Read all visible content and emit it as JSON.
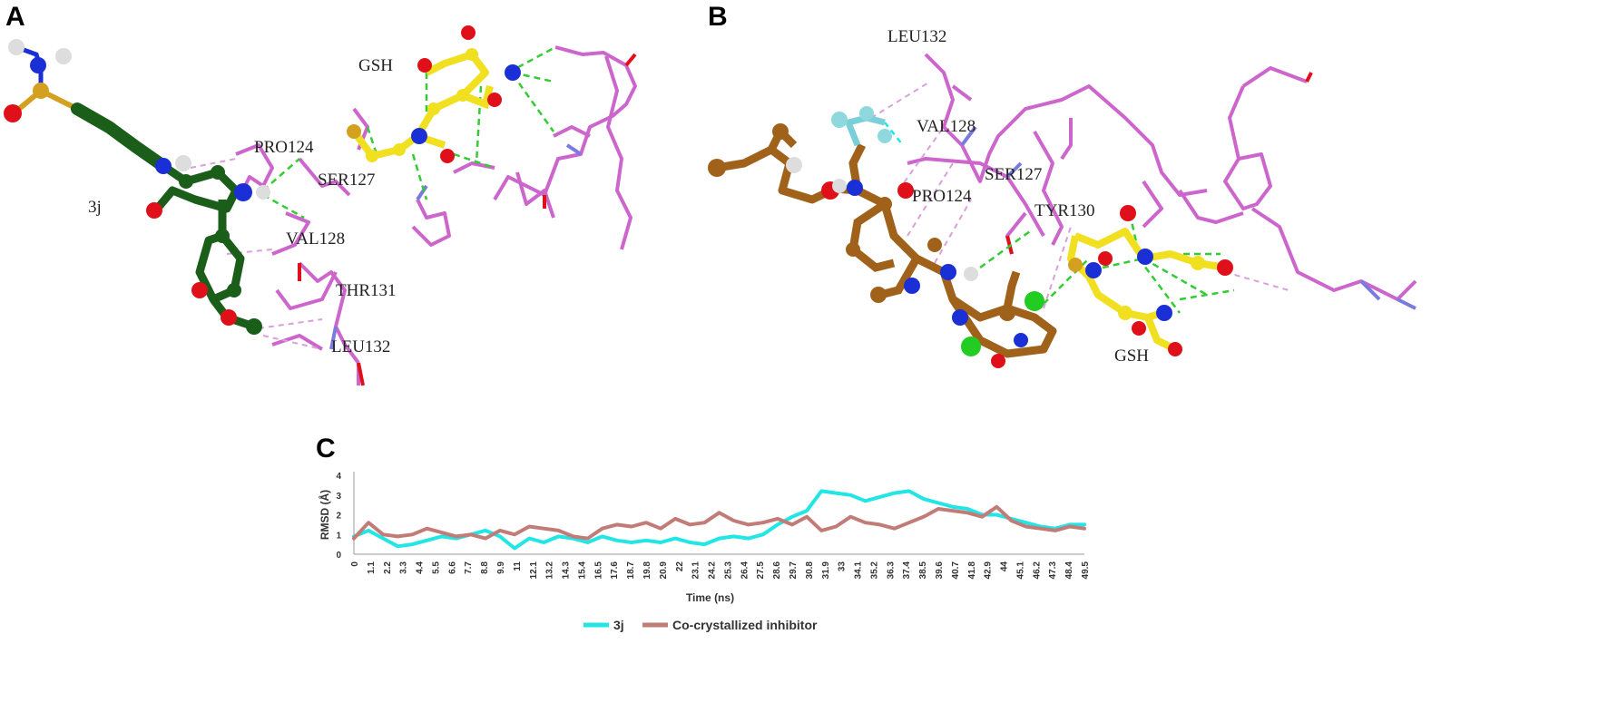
{
  "panels": {
    "a": {
      "letter": "A",
      "labels": [
        "GSH",
        "PRO124",
        "SER127",
        "3j",
        "VAL128",
        "THR131",
        "LEU132"
      ]
    },
    "b": {
      "letter": "B",
      "labels": [
        "LEU132",
        "VAL128",
        "SER127",
        "PRO124",
        "TYR130",
        "GSH"
      ]
    },
    "c": {
      "letter": "C"
    }
  },
  "colors": {
    "ligand_3j": "#1a5e1a",
    "ligand_inhibitor": "#a0621a",
    "gsh": "#f0e020",
    "residue": "#cc66cc",
    "nitrogen": "#1a2fd6",
    "oxygen": "#e0101a",
    "hbond": "#33cc33",
    "series_3j": "#22e5e5",
    "series_inhibitor": "#c27c78"
  },
  "chart_data": {
    "type": "line",
    "title": "",
    "xlabel": "Time (ns)",
    "ylabel": "RMSD (Å)",
    "xlim": [
      0,
      50
    ],
    "ylim": [
      0,
      4
    ],
    "yticks": [
      0,
      1,
      2,
      3,
      4
    ],
    "xticks": [
      "0",
      "1.1",
      "2.2",
      "3.3",
      "4.4",
      "5.5",
      "6.6",
      "7.7",
      "8.8",
      "9.9",
      "11",
      "12.1",
      "13.2",
      "14.3",
      "15.4",
      "16.5",
      "17.6",
      "18.7",
      "19.8",
      "20.9",
      "22",
      "23.1",
      "24.2",
      "25.3",
      "26.4",
      "27.5",
      "28.6",
      "29.7",
      "30.8",
      "31.9",
      "33",
      "34.1",
      "35.2",
      "36.3",
      "37.4",
      "38.5",
      "39.6",
      "40.7",
      "41.8",
      "42.9",
      "44",
      "45.1",
      "46.2",
      "47.3",
      "48.4",
      "49.5"
    ],
    "legend_position": "bottom",
    "series": [
      {
        "name": "3j",
        "x": [
          0,
          1,
          2,
          3,
          4,
          5,
          6,
          7,
          8,
          9,
          10,
          11,
          12,
          13,
          14,
          15,
          16,
          17,
          18,
          19,
          20,
          21,
          22,
          23,
          24,
          25,
          26,
          27,
          28,
          29,
          30,
          31,
          32,
          33,
          34,
          35,
          36,
          37,
          38,
          39,
          40,
          41,
          42,
          43,
          44,
          45,
          46,
          47,
          48,
          49,
          50
        ],
        "values": [
          0.9,
          1.2,
          0.8,
          0.4,
          0.5,
          0.7,
          0.9,
          0.8,
          1.0,
          1.2,
          0.9,
          0.3,
          0.8,
          0.6,
          0.9,
          0.8,
          0.6,
          0.9,
          0.7,
          0.6,
          0.7,
          0.6,
          0.8,
          0.6,
          0.5,
          0.8,
          0.9,
          0.8,
          1.0,
          1.5,
          1.9,
          2.2,
          3.2,
          3.1,
          3.0,
          2.7,
          2.9,
          3.1,
          3.2,
          2.8,
          2.6,
          2.4,
          2.3,
          2.0,
          2.0,
          1.8,
          1.6,
          1.4,
          1.3,
          1.5,
          1.5
        ]
      },
      {
        "name": "Co-crystallized inhibitor",
        "x": [
          0,
          1,
          2,
          3,
          4,
          5,
          6,
          7,
          8,
          9,
          10,
          11,
          12,
          13,
          14,
          15,
          16,
          17,
          18,
          19,
          20,
          21,
          22,
          23,
          24,
          25,
          26,
          27,
          28,
          29,
          30,
          31,
          32,
          33,
          34,
          35,
          36,
          37,
          38,
          39,
          40,
          41,
          42,
          43,
          44,
          45,
          46,
          47,
          48,
          49,
          50
        ],
        "values": [
          0.8,
          1.6,
          1.0,
          0.9,
          1.0,
          1.3,
          1.1,
          0.9,
          1.0,
          0.8,
          1.2,
          1.0,
          1.4,
          1.3,
          1.2,
          0.9,
          0.8,
          1.3,
          1.5,
          1.4,
          1.6,
          1.3,
          1.8,
          1.5,
          1.6,
          2.1,
          1.7,
          1.5,
          1.6,
          1.8,
          1.5,
          1.9,
          1.2,
          1.4,
          1.9,
          1.6,
          1.5,
          1.3,
          1.6,
          1.9,
          2.3,
          2.2,
          2.1,
          1.9,
          2.4,
          1.7,
          1.4,
          1.3,
          1.2,
          1.4,
          1.3
        ]
      }
    ]
  }
}
